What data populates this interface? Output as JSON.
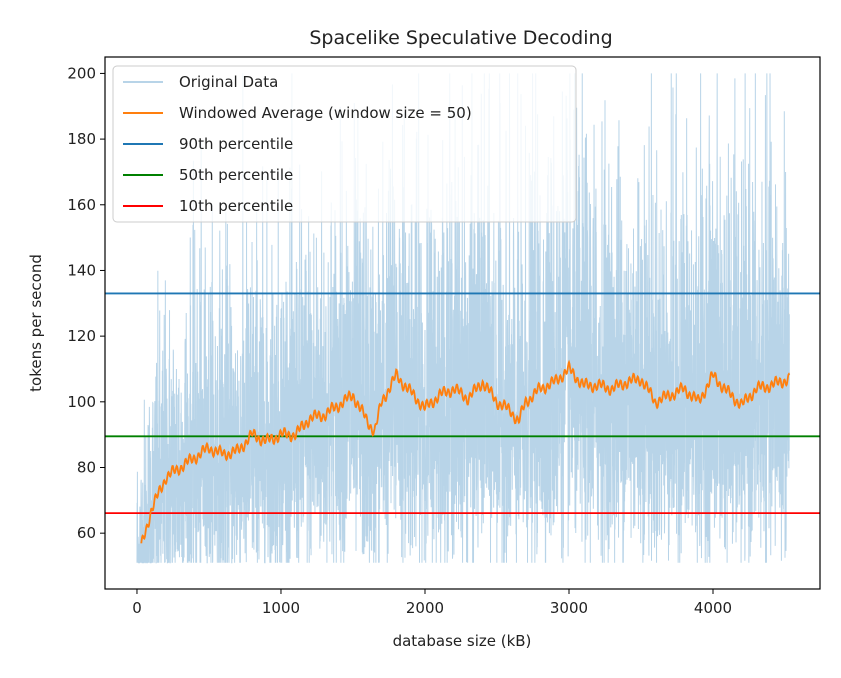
{
  "chart_data": {
    "type": "line",
    "title": "Spacelike Speculative Decoding",
    "xlabel": "database size (kB)",
    "ylabel": "tokens per second",
    "xlim": [
      -222,
      4743
    ],
    "ylim": [
      43,
      205
    ],
    "xticks": [
      0,
      1000,
      2000,
      3000,
      4000
    ],
    "yticks": [
      60,
      80,
      100,
      120,
      140,
      160,
      180,
      200
    ],
    "grid": false,
    "legend_position": "top-left",
    "series": [
      {
        "name": "Original Data",
        "color": "#b8d4e8",
        "x_range": [
          0,
          4530
        ],
        "min": 51,
        "max": 200
      },
      {
        "name": "Windowed Average (window size = 50)",
        "color": "#ff7f0e",
        "x": [
          30,
          100,
          200,
          300,
          400,
          500,
          600,
          700,
          800,
          900,
          1000,
          1100,
          1200,
          1300,
          1400,
          1500,
          1600,
          1650,
          1700,
          1800,
          1900,
          2000,
          2100,
          2200,
          2300,
          2400,
          2500,
          2600,
          2650,
          2700,
          2800,
          2900,
          3000,
          3100,
          3200,
          3300,
          3400,
          3500,
          3600,
          3700,
          3800,
          3900,
          4000,
          4100,
          4200,
          4300,
          4400,
          4530
        ],
        "y": [
          56,
          67,
          77,
          80,
          83,
          86,
          84,
          85,
          90,
          88,
          90,
          90,
          95,
          96,
          99,
          102,
          94,
          91,
          100,
          108,
          103,
          98,
          102,
          104,
          101,
          106,
          100,
          97,
          94,
          100,
          104,
          106,
          110,
          105,
          105,
          104,
          106,
          107,
          100,
          102,
          104,
          100,
          108,
          103,
          99,
          104,
          105,
          107
        ]
      },
      {
        "name": "90th percentile",
        "color": "#1f77b4",
        "value": 133.0
      },
      {
        "name": "50th percentile",
        "color": "#008000",
        "value": 89.5
      },
      {
        "name": "10th percentile",
        "color": "#ff0000",
        "value": 66.1
      }
    ]
  }
}
